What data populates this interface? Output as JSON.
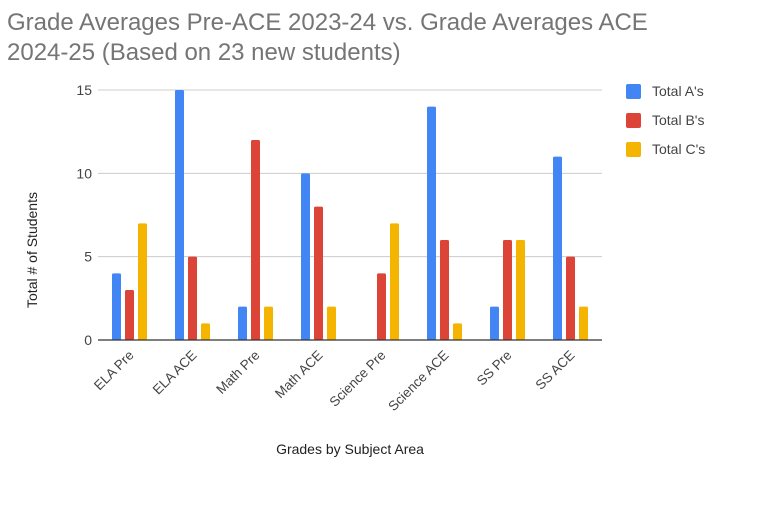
{
  "chart_data": {
    "type": "bar",
    "title_line1": "Grade Averages Pre-ACE 2023-24 vs. Grade Averages ACE",
    "title_line2": "2024-25 (Based on 23 new students)",
    "xlabel": "Grades by Subject Area",
    "ylabel": "Total # of Students",
    "ylim": [
      0,
      15
    ],
    "yticks": [
      0,
      5,
      10,
      15
    ],
    "grid": true,
    "legend_position": "right",
    "categories": [
      "ELA Pre",
      "ELA ACE",
      "Math Pre",
      "Math ACE",
      "Science Pre",
      "Science ACE",
      "SS Pre",
      "SS ACE"
    ],
    "series": [
      {
        "name": "Total A's",
        "color": "#4285F4",
        "values": [
          4,
          15,
          2,
          10,
          0,
          14,
          2,
          11
        ]
      },
      {
        "name": "Total B's",
        "color": "#DB4437",
        "values": [
          3,
          5,
          12,
          8,
          4,
          6,
          6,
          5
        ]
      },
      {
        "name": "Total C's",
        "color": "#F4B400",
        "values": [
          7,
          1,
          2,
          2,
          7,
          1,
          6,
          2
        ]
      }
    ]
  }
}
